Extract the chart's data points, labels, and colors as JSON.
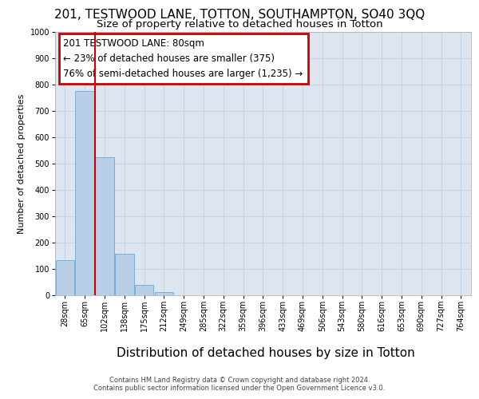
{
  "title1": "201, TESTWOOD LANE, TOTTON, SOUTHAMPTON, SO40 3QQ",
  "title2": "Size of property relative to detached houses in Totton",
  "xlabel": "Distribution of detached houses by size in Totton",
  "ylabel": "Number of detached properties",
  "footer_line1": "Contains HM Land Registry data © Crown copyright and database right 2024.",
  "footer_line2": "Contains public sector information licensed under the Open Government Licence v3.0.",
  "bin_labels": [
    "28sqm",
    "65sqm",
    "102sqm",
    "138sqm",
    "175sqm",
    "212sqm",
    "249sqm",
    "285sqm",
    "322sqm",
    "359sqm",
    "396sqm",
    "433sqm",
    "469sqm",
    "506sqm",
    "543sqm",
    "580sqm",
    "616sqm",
    "653sqm",
    "690sqm",
    "727sqm",
    "764sqm"
  ],
  "bar_values": [
    132,
    775,
    523,
    157,
    38,
    13,
    0,
    0,
    0,
    0,
    0,
    0,
    0,
    0,
    0,
    0,
    0,
    0,
    0,
    0,
    0
  ],
  "bar_color": "#b8cfe8",
  "bar_edge_color": "#6ea6d0",
  "grid_color": "#c8d4e4",
  "background_color": "#dde6f0",
  "vline_color": "#cc0000",
  "vline_x": 1.5,
  "annotation_line1": "201 TESTWOOD LANE: 80sqm",
  "annotation_line2": "← 23% of detached houses are smaller (375)",
  "annotation_line3": "76% of semi-detached houses are larger (1,235) →",
  "annotation_box_facecolor": "#ffffff",
  "annotation_box_edgecolor": "#cc0000",
  "ylim_max": 1000,
  "yticks": [
    0,
    100,
    200,
    300,
    400,
    500,
    600,
    700,
    800,
    900,
    1000
  ],
  "title1_fontsize": 11,
  "title2_fontsize": 9.5,
  "ylabel_fontsize": 8,
  "xlabel_fontsize": 11,
  "tick_fontsize": 7,
  "annotation_fontsize": 8.5,
  "footer_fontsize": 6
}
